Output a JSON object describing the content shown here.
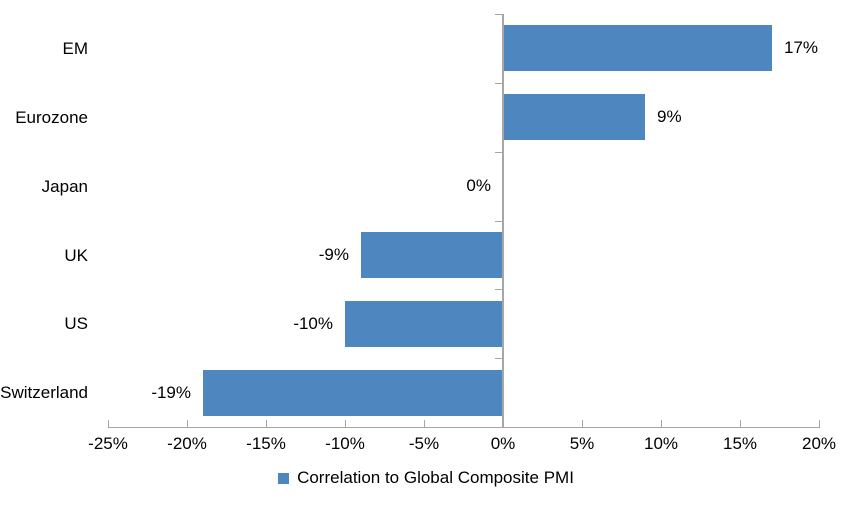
{
  "chart_data": {
    "type": "bar",
    "orientation": "horizontal",
    "title": "",
    "xlabel": "",
    "ylabel": "",
    "categories": [
      "EM",
      "Eurozone",
      "Japan",
      "UK",
      "US",
      "Switzerland"
    ],
    "values": [
      17,
      9,
      0,
      -9,
      -10,
      -19
    ],
    "value_labels": [
      "17%",
      "9%",
      "0%",
      "-9%",
      "-10%",
      "-19%"
    ],
    "xlim": [
      -25,
      20
    ],
    "xticks": [
      -25,
      -20,
      -15,
      -10,
      -5,
      0,
      5,
      10,
      15,
      20
    ],
    "xtick_labels": [
      "-25%",
      "-20%",
      "-15%",
      "-10%",
      "-5%",
      "0%",
      "5%",
      "10%",
      "15%",
      "20%"
    ],
    "legend": [
      "Correlation to Global Composite PMI"
    ],
    "legend_position": "bottom",
    "grid": false,
    "colors": {
      "bar": "#4E86C0",
      "axis": "#A6A6A6",
      "text": "#000000",
      "background": "#FFFFFF"
    }
  }
}
